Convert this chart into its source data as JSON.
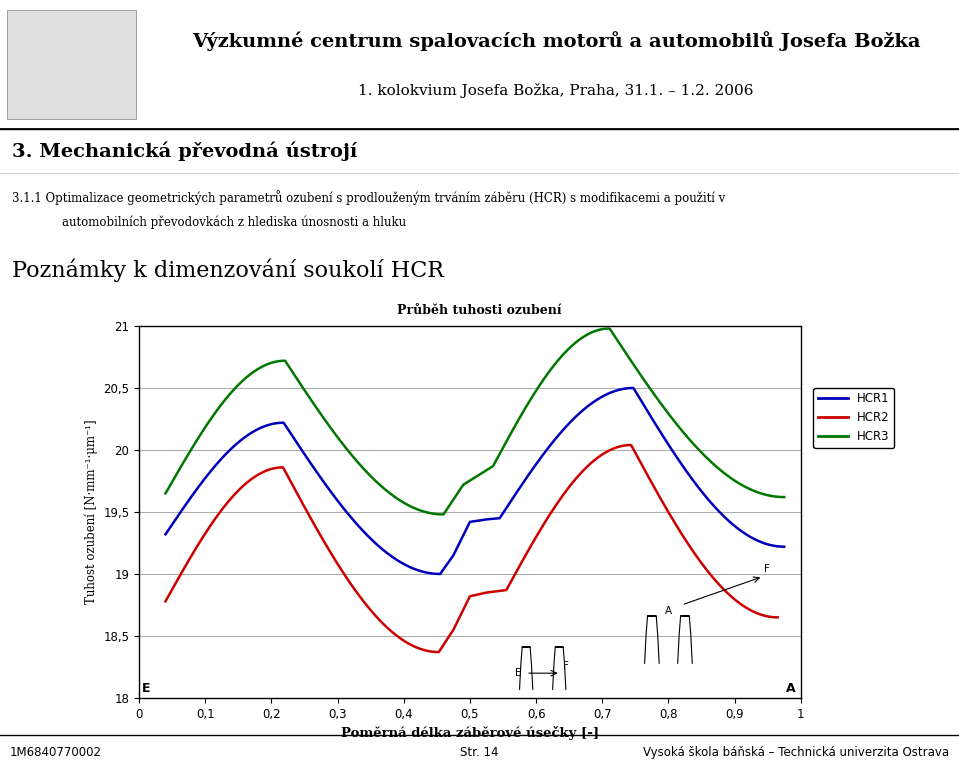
{
  "title_line1": "Výzkumné centrum spalovacích motorů a automobilů Josefa Božka",
  "title_line2": "1. kolokvium Josefa Božka, Praha, 31.1. – 1.2. 2006",
  "section_title": "3. Mechanická převodná ústrojí",
  "subsection_line1": "3.1.1 Optimalizace geometrických parametrů ozubení s prodlouženým trváním záběru (HCR) s modifikacemi a použití v",
  "subsection_line2": "automobilních převodovkách z hlediska únosnosti a hluku",
  "note_title": "Poznámky k dimenzování soukolí HCR",
  "chart_title": "Průběh tuhosti ozubení",
  "xlabel": "Poměrná délka záběrové úsečky [-]",
  "ylabel": "Tuhost ozubení [N·mm⁻¹·μm⁻¹]",
  "ylim": [
    18,
    21
  ],
  "xlim": [
    0,
    1
  ],
  "yticks": [
    18,
    18.5,
    19,
    19.5,
    20,
    20.5,
    21
  ],
  "xtick_labels": [
    "0",
    "0,1",
    "0,2",
    "0,3",
    "0,4",
    "0,5",
    "0,6",
    "0,7",
    "0,8",
    "0,9",
    "1"
  ],
  "xtick_vals": [
    0,
    0.1,
    0.2,
    0.3,
    0.4,
    0.5,
    0.6,
    0.7,
    0.8,
    0.9,
    1.0
  ],
  "ytick_labels": [
    "18",
    "18,5",
    "19",
    "19,5",
    "20",
    "20,5",
    "21"
  ],
  "footer_left": "1M6840770002",
  "footer_center": "Str. 14",
  "footer_right": "Vysoká škola báňská – Technická univerzita Ostrava",
  "HCR1_color": "#0000bb",
  "HCR2_color": "#cc0000",
  "HCR3_color": "#007700",
  "background_header": "#e0e0e0",
  "background_section": "#c8c8c8",
  "chart_bg": "#ffffff",
  "line_width": 1.8,
  "header_image_placeholder": true
}
